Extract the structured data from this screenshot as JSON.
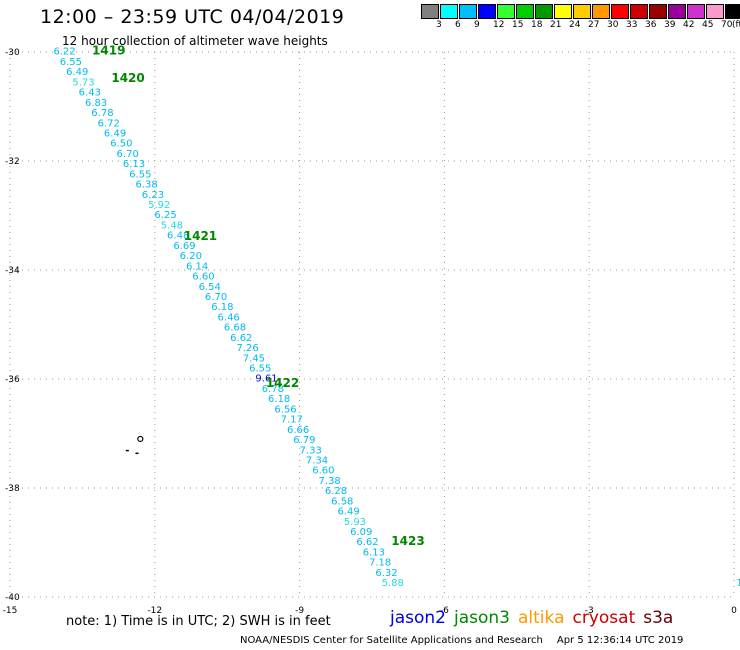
{
  "header": {
    "title": "12:00 – 23:59 UTC 04/04/2019",
    "subtitle": "12 hour collection of altimeter wave heights"
  },
  "legend": {
    "colors": [
      "#808080",
      "#00ffff",
      "#00bfff",
      "#0000ff",
      "#33ff33",
      "#00cc00",
      "#009900",
      "#ffff00",
      "#ffcc00",
      "#ff9900",
      "#ff0000",
      "#cc0000",
      "#990000",
      "#990099",
      "#cc33cc",
      "#ff99cc",
      "#000000"
    ],
    "labels": [
      "3",
      "6",
      "9",
      "12",
      "15",
      "18",
      "21",
      "24",
      "27",
      "30",
      "33",
      "36",
      "39",
      "42",
      "45",
      "70"
    ],
    "unit": "(ft)"
  },
  "map": {
    "y_ticks": [
      {
        "label": "-30",
        "value": -30
      },
      {
        "label": "-32",
        "value": -32
      },
      {
        "label": "-34",
        "value": -34
      },
      {
        "label": "-36",
        "value": -36
      },
      {
        "label": "-38",
        "value": -38
      },
      {
        "label": "-40",
        "value": -40
      }
    ],
    "x_ticks": [
      {
        "label": "-15",
        "value": -15
      },
      {
        "label": "-12",
        "value": -12
      },
      {
        "label": "-9",
        "value": -9
      },
      {
        "label": "-6",
        "value": -6
      },
      {
        "label": "-3",
        "value": -3
      },
      {
        "label": "0",
        "value": 0
      }
    ],
    "lon_range": [
      -15,
      0
    ],
    "lat_range": [
      -40,
      -30
    ],
    "pass_labels": [
      {
        "text": "1419",
        "lon": -13.3,
        "lat": -30.05
      },
      {
        "text": "1420",
        "lon": -12.9,
        "lat": -30.55
      },
      {
        "text": "1421",
        "lon": -11.4,
        "lat": -33.45
      },
      {
        "text": "1422",
        "lon": -9.7,
        "lat": -36.15
      },
      {
        "text": "1423",
        "lon": -7.1,
        "lat": -39.05
      }
    ],
    "pass_color": "#008800",
    "track_start": {
      "lon": -14.1,
      "lat": -30.05
    },
    "track_end": {
      "lon": -7.3,
      "lat": -39.8
    },
    "measurements": [
      {
        "v": "6.22",
        "c": "#00bbee"
      },
      {
        "v": "6.55",
        "c": "#00bbee"
      },
      {
        "v": "6.49",
        "c": "#00bbee"
      },
      {
        "v": "5.73",
        "c": "#22dddd"
      },
      {
        "v": "6.43",
        "c": "#00bbee"
      },
      {
        "v": "6.83",
        "c": "#00bbee"
      },
      {
        "v": "6.78",
        "c": "#00bbee"
      },
      {
        "v": "6.72",
        "c": "#00bbee"
      },
      {
        "v": "6.49",
        "c": "#00bbee"
      },
      {
        "v": "6.50",
        "c": "#00bbee"
      },
      {
        "v": "6.70",
        "c": "#00bbee"
      },
      {
        "v": "6.13",
        "c": "#00bbee"
      },
      {
        "v": "6.55",
        "c": "#00bbee"
      },
      {
        "v": "6.38",
        "c": "#00bbee"
      },
      {
        "v": "6.23",
        "c": "#00bbee"
      },
      {
        "v": "5.92",
        "c": "#22dddd"
      },
      {
        "v": "6.25",
        "c": "#00bbee"
      },
      {
        "v": "5.48",
        "c": "#22dddd"
      },
      {
        "v": "6.48",
        "c": "#00bbee"
      },
      {
        "v": "6.69",
        "c": "#00bbee"
      },
      {
        "v": "6.20",
        "c": "#00bbee"
      },
      {
        "v": "6.14",
        "c": "#00bbee"
      },
      {
        "v": "6.60",
        "c": "#00bbee"
      },
      {
        "v": "6.54",
        "c": "#00bbee"
      },
      {
        "v": "6.70",
        "c": "#00bbee"
      },
      {
        "v": "6.18",
        "c": "#00bbee"
      },
      {
        "v": "6.46",
        "c": "#00bbee"
      },
      {
        "v": "6.68",
        "c": "#00bbee"
      },
      {
        "v": "6.62",
        "c": "#00bbee"
      },
      {
        "v": "7.26",
        "c": "#00bbee"
      },
      {
        "v": "7.45",
        "c": "#00bbee"
      },
      {
        "v": "6.55",
        "c": "#00bbee"
      },
      {
        "v": "9.61",
        "c": "#0000cc"
      },
      {
        "v": "6.78",
        "c": "#00bbee"
      },
      {
        "v": "6.18",
        "c": "#00bbee"
      },
      {
        "v": "6.56",
        "c": "#00bbee"
      },
      {
        "v": "7.17",
        "c": "#00bbee"
      },
      {
        "v": "6.66",
        "c": "#00bbee"
      },
      {
        "v": "6.79",
        "c": "#00bbee"
      },
      {
        "v": "7.33",
        "c": "#00bbee"
      },
      {
        "v": "7.34",
        "c": "#00bbee"
      },
      {
        "v": "6.60",
        "c": "#00bbee"
      },
      {
        "v": "7.38",
        "c": "#00bbee"
      },
      {
        "v": "6.28",
        "c": "#00bbee"
      },
      {
        "v": "6.58",
        "c": "#00bbee"
      },
      {
        "v": "6.49",
        "c": "#00bbee"
      },
      {
        "v": "5.93",
        "c": "#22dddd"
      },
      {
        "v": "6.09",
        "c": "#00bbee"
      },
      {
        "v": "6.62",
        "c": "#00bbee"
      },
      {
        "v": "6.13",
        "c": "#00bbee"
      },
      {
        "v": "7.18",
        "c": "#00bbee"
      },
      {
        "v": "6.32",
        "c": "#00bbee"
      },
      {
        "v": "5.88",
        "c": "#22dddd"
      }
    ],
    "islands": [
      {
        "lon": -12.3,
        "lat": -37.1
      },
      {
        "lon": -12.6,
        "lat": -37.3
      },
      {
        "lon": -12.4,
        "lat": -37.35
      }
    ],
    "edge_fragment": {
      "text": "1",
      "lon": 0.05,
      "lat": -39.8,
      "color": "#00bbee"
    }
  },
  "footer": {
    "note": "note:  1) Time is in UTC;  2) SWH is in feet",
    "satellites": [
      {
        "name": "jason2",
        "color": "#0000dd"
      },
      {
        "name": "jason3",
        "color": "#008800"
      },
      {
        "name": "altika",
        "color": "#ff9900"
      },
      {
        "name": "cryosat",
        "color": "#cc0000"
      },
      {
        "name": "s3a",
        "color": "#660000"
      }
    ],
    "credit": "NOAA/NESDIS Center for Satellite Applications and Research",
    "timestamp": "Apr  5 12:36:14 UTC 2019"
  }
}
